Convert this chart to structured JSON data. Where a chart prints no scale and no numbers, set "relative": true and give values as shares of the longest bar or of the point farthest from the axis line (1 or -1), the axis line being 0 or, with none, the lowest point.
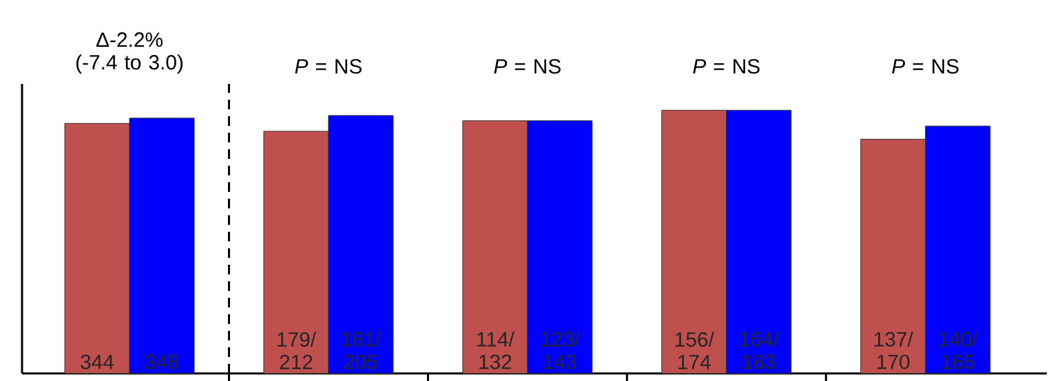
{
  "chart_data": {
    "type": "bar",
    "relative": true,
    "categories": [
      null,
      null,
      null,
      null,
      null
    ],
    "series": [
      {
        "color": "#c0504d",
        "values": [
          0.95,
          0.92,
          0.96,
          1,
          0.89
        ]
      },
      {
        "color": "#0000ff",
        "values": [
          0.97,
          0.98,
          0.96,
          1,
          0.94
        ]
      }
    ],
    "annotations": [
      "Δ-2.2% (-7.4 to 3.0)",
      "*P* = NS",
      "*P* = NS",
      "*P* = NS",
      "*P* = NS",
      "344",
      "348",
      "179/ 212",
      "181/ 205",
      "114/ 132",
      "123/ 143",
      "156/ 174",
      "164/ 183",
      "137/ 170",
      "140/ 165"
    ]
  }
}
